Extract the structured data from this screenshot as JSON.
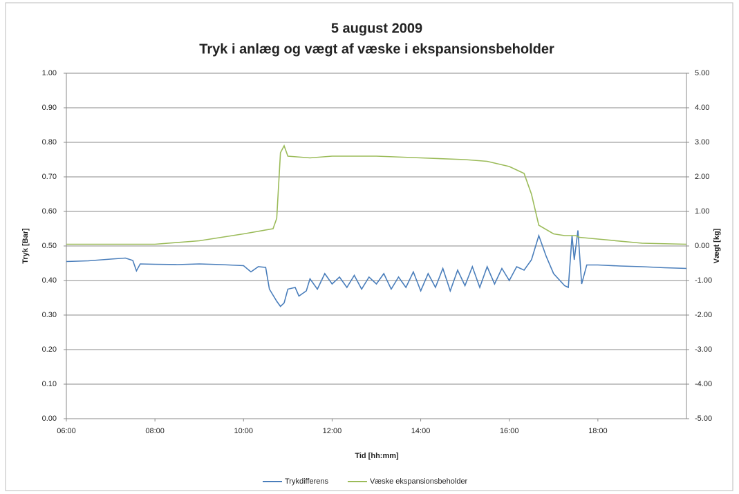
{
  "chart_data": {
    "type": "line",
    "title": "5 august 2009",
    "subtitle": "Tryk i anlæg og vægt af væske i ekspansionsbeholder",
    "x_label": "Tid [hh:mm]",
    "y_label": "Tryk [Bar]",
    "y2_label": "Vægt [kg]",
    "xlim": [
      "06:00",
      "20:00"
    ],
    "xticks": [
      "06:00",
      "08:00",
      "10:00",
      "12:00",
      "14:00",
      "16:00",
      "18:00"
    ],
    "ylim": [
      0,
      1
    ],
    "yticks": [
      {
        "value": 0,
        "label": "0.00"
      },
      {
        "value": 0.1,
        "label": "0.10"
      },
      {
        "value": 0.2,
        "label": "0.20"
      },
      {
        "value": 0.3,
        "label": "0.30"
      },
      {
        "value": 0.4,
        "label": "0.40"
      },
      {
        "value": 0.5,
        "label": "0.50"
      },
      {
        "value": 0.6,
        "label": "0.60"
      },
      {
        "value": 0.7,
        "label": "0.70"
      },
      {
        "value": 0.8,
        "label": "0.80"
      },
      {
        "value": 0.9,
        "label": "0.90"
      },
      {
        "value": 1,
        "label": "1.00"
      }
    ],
    "y2lim": [
      -5,
      5
    ],
    "y2ticks": [
      {
        "value": -5,
        "label": "-5.00"
      },
      {
        "value": -4,
        "label": "-4.00"
      },
      {
        "value": -3,
        "label": "-3.00"
      },
      {
        "value": -2,
        "label": "-2.00"
      },
      {
        "value": -1,
        "label": "-1.00"
      },
      {
        "value": 0,
        "label": "0.00"
      },
      {
        "value": 1,
        "label": "1.00"
      },
      {
        "value": 2,
        "label": "2.00"
      },
      {
        "value": 3,
        "label": "3.00"
      },
      {
        "value": 4,
        "label": "4.00"
      },
      {
        "value": 5,
        "label": "5.00"
      }
    ],
    "grid": true,
    "legend": "bottom",
    "series": [
      {
        "name": "Trykdifferens",
        "color": "#4a7ebb",
        "axis": "y",
        "x": [
          "06:00",
          "06:30",
          "07:00",
          "07:20",
          "07:30",
          "07:35",
          "07:40",
          "08:00",
          "08:30",
          "09:00",
          "09:30",
          "10:00",
          "10:10",
          "10:20",
          "10:30",
          "10:35",
          "10:45",
          "10:50",
          "10:55",
          "11:00",
          "11:10",
          "11:15",
          "11:25",
          "11:30",
          "11:40",
          "11:50",
          "12:00",
          "12:10",
          "12:20",
          "12:30",
          "12:40",
          "12:50",
          "13:00",
          "13:10",
          "13:20",
          "13:30",
          "13:40",
          "13:50",
          "14:00",
          "14:10",
          "14:20",
          "14:30",
          "14:40",
          "14:50",
          "15:00",
          "15:10",
          "15:20",
          "15:30",
          "15:40",
          "15:50",
          "16:00",
          "16:10",
          "16:20",
          "16:30",
          "16:40",
          "16:50",
          "17:00",
          "17:15",
          "17:20",
          "17:25",
          "17:28",
          "17:33",
          "17:38",
          "17:45",
          "18:00",
          "18:30",
          "19:00",
          "19:30",
          "20:00"
        ],
        "values": [
          0.455,
          0.457,
          0.462,
          0.465,
          0.458,
          0.428,
          0.448,
          0.447,
          0.446,
          0.448,
          0.446,
          0.443,
          0.425,
          0.44,
          0.438,
          0.375,
          0.34,
          0.325,
          0.335,
          0.375,
          0.38,
          0.355,
          0.37,
          0.405,
          0.375,
          0.42,
          0.39,
          0.41,
          0.38,
          0.415,
          0.375,
          0.41,
          0.39,
          0.42,
          0.375,
          0.41,
          0.38,
          0.425,
          0.37,
          0.42,
          0.38,
          0.435,
          0.37,
          0.43,
          0.385,
          0.44,
          0.38,
          0.44,
          0.39,
          0.435,
          0.4,
          0.44,
          0.43,
          0.46,
          0.53,
          0.47,
          0.42,
          0.385,
          0.38,
          0.53,
          0.46,
          0.545,
          0.39,
          0.445,
          0.445,
          0.442,
          0.44,
          0.437,
          0.435
        ]
      },
      {
        "name": "Væske ekspansionsbeholder",
        "color": "#9bbb59",
        "axis": "y2",
        "x": [
          "06:00",
          "07:00",
          "08:00",
          "09:00",
          "10:00",
          "10:40",
          "10:45",
          "10:50",
          "10:55",
          "11:00",
          "11:30",
          "12:00",
          "13:00",
          "14:00",
          "15:00",
          "15:30",
          "16:00",
          "16:20",
          "16:30",
          "16:40",
          "17:00",
          "17:15",
          "17:30",
          "17:35",
          "18:00",
          "19:00",
          "20:00"
        ],
        "values": [
          0.05,
          0.05,
          0.05,
          0.15,
          0.35,
          0.5,
          0.8,
          2.7,
          2.9,
          2.6,
          2.55,
          2.6,
          2.6,
          2.55,
          2.5,
          2.45,
          2.3,
          2.1,
          1.5,
          0.6,
          0.35,
          0.3,
          0.3,
          0.25,
          0.2,
          0.08,
          0.05
        ]
      }
    ]
  }
}
